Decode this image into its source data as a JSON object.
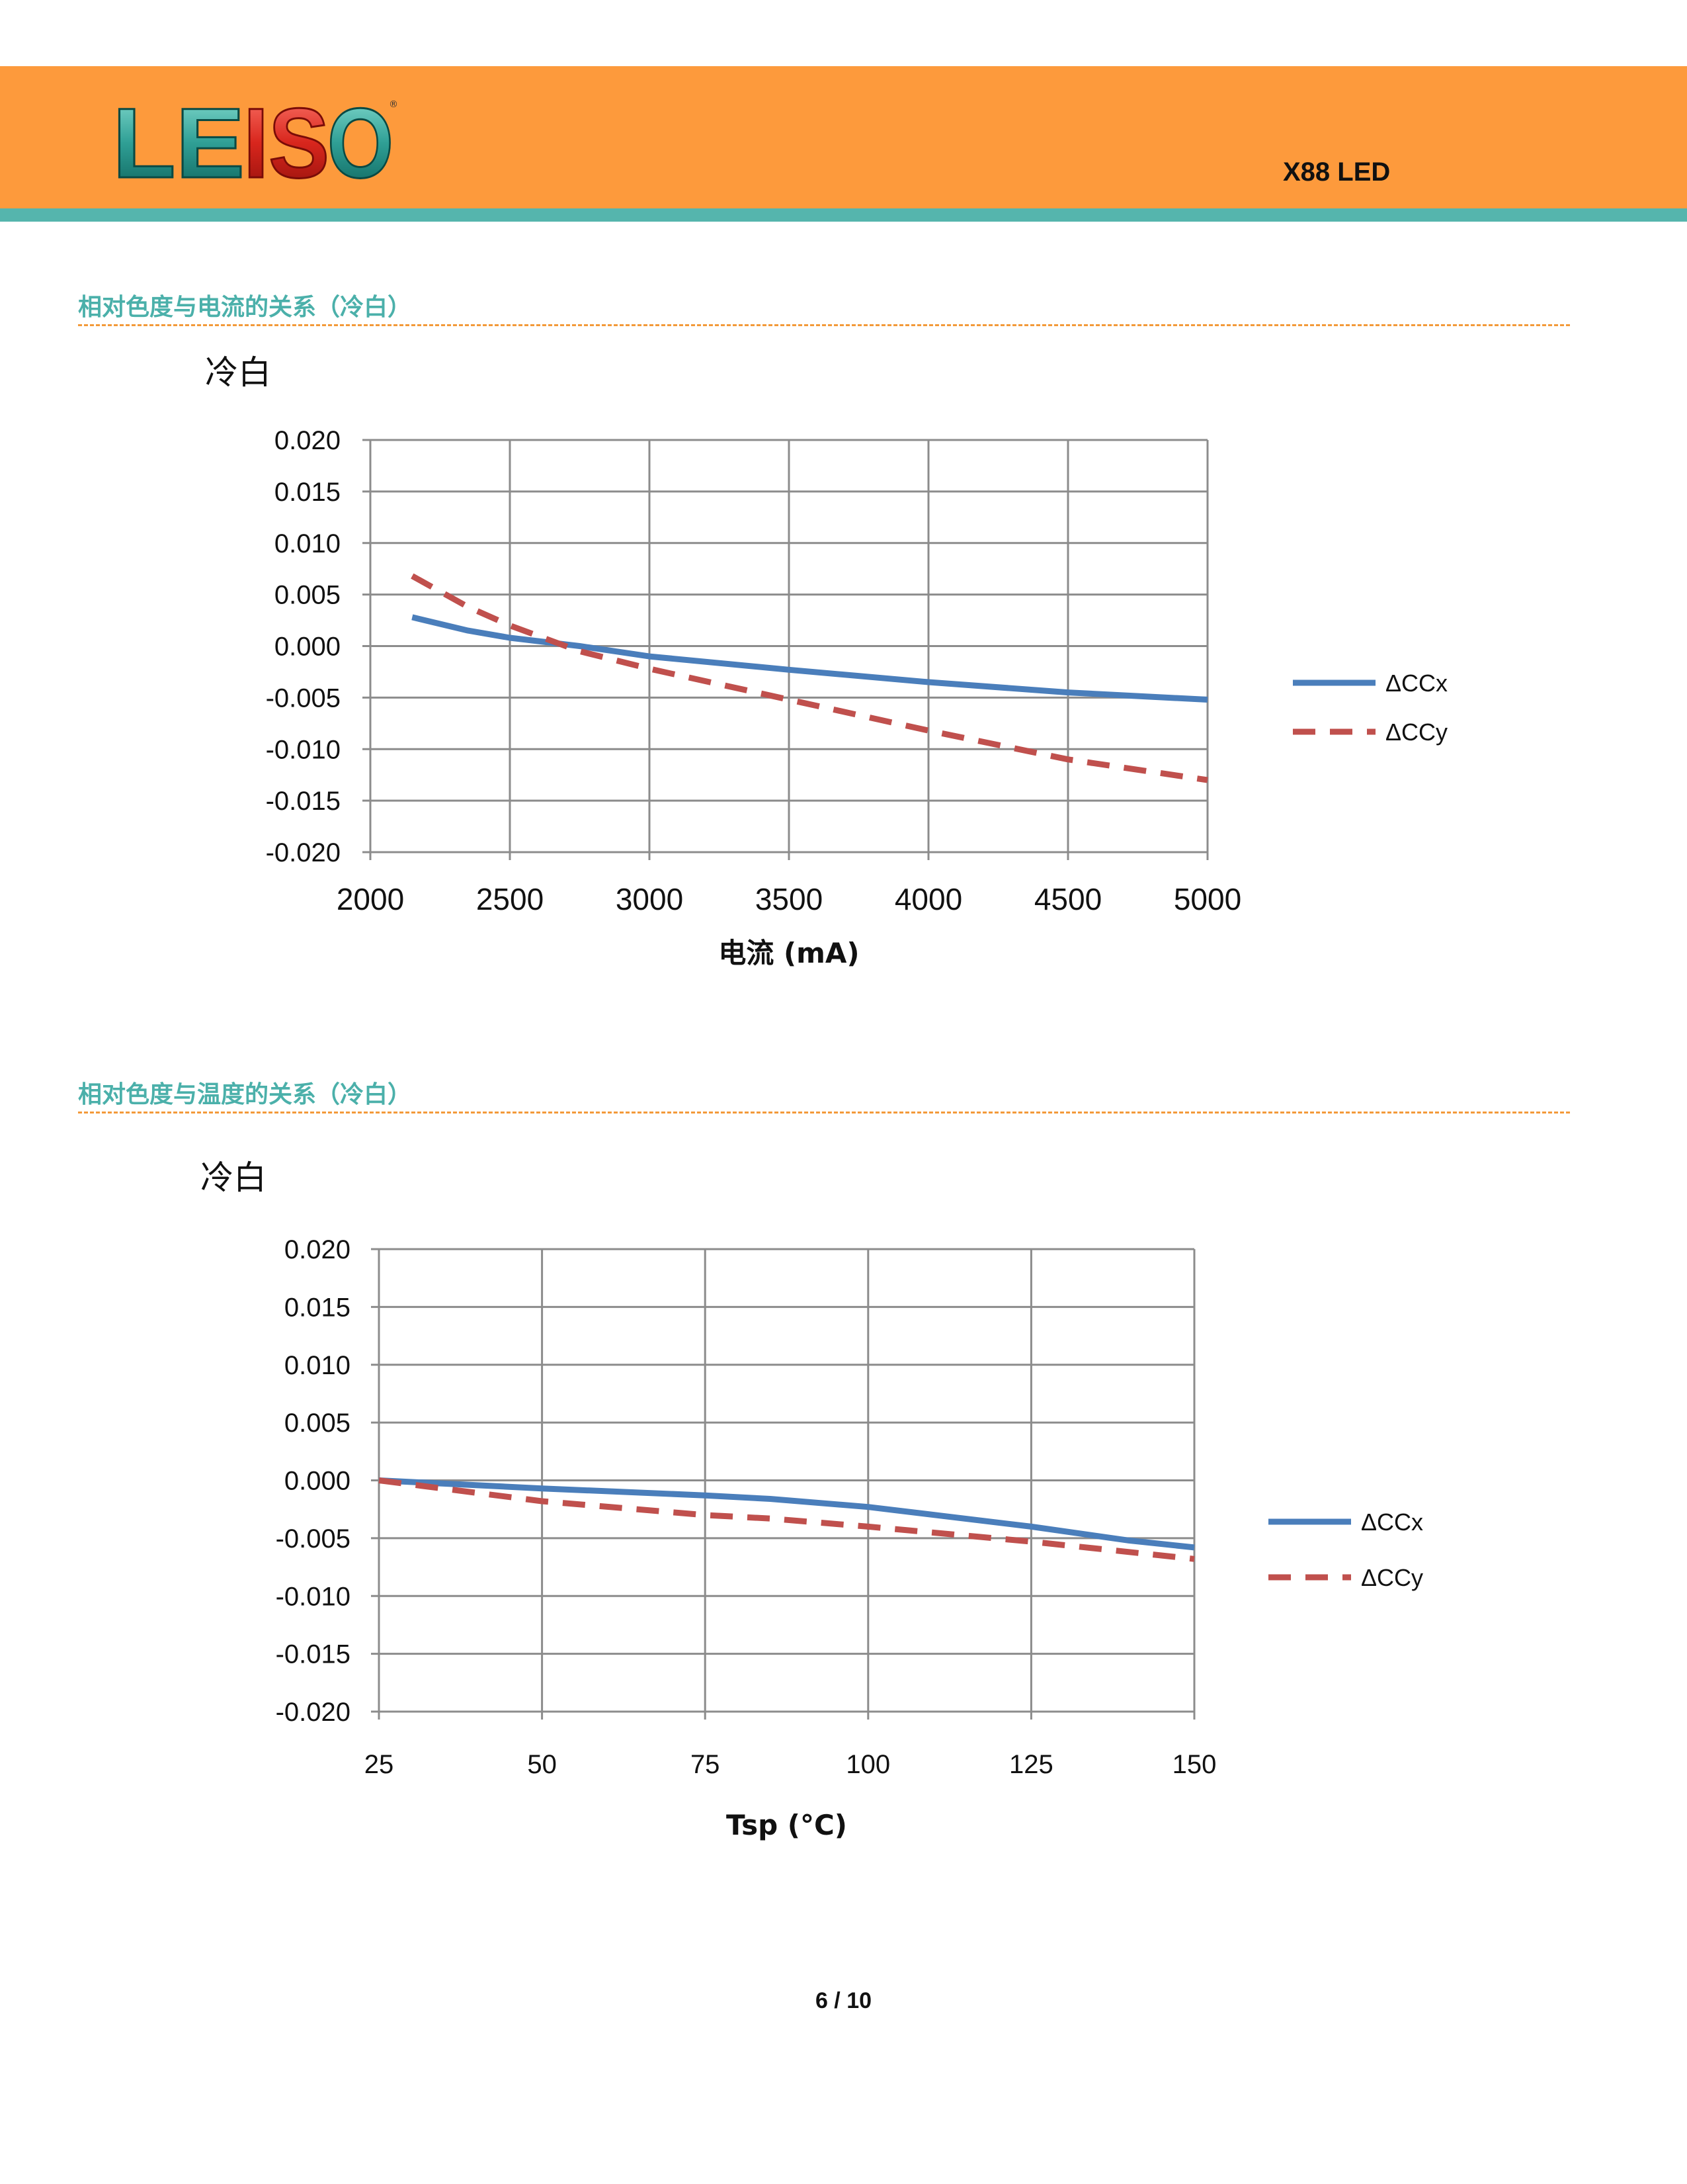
{
  "header": {
    "logo_text": "LEISO",
    "product": "X88 LED"
  },
  "sections": [
    {
      "title": "相对色度与电流的关系（冷白）"
    },
    {
      "title": "相对色度与温度的关系（冷白）"
    }
  ],
  "chart_data": [
    {
      "type": "line",
      "title": "冷白",
      "xlabel": "电流 (mA)",
      "ylabel": "",
      "xlim": [
        2000,
        5000
      ],
      "ylim": [
        -0.02,
        0.02
      ],
      "xticks": [
        "2000",
        "2500",
        "3000",
        "3500",
        "4000",
        "4500",
        "5000"
      ],
      "yticks": [
        "0.020",
        "0.015",
        "0.010",
        "0.005",
        "0.000",
        "-0.005",
        "-0.010",
        "-0.015",
        "-0.020"
      ],
      "grid": true,
      "legend_position": "right",
      "x": [
        2150,
        2350,
        2500,
        2750,
        3000,
        3500,
        4000,
        4500,
        5000
      ],
      "series": [
        {
          "name": "ΔCCx",
          "color": "#4a7ebb",
          "style": "solid",
          "values": [
            0.0028,
            0.0015,
            0.0008,
            0.0,
            -0.001,
            -0.0023,
            -0.0035,
            -0.0045,
            -0.0052
          ]
        },
        {
          "name": "ΔCCy",
          "color": "#c0504d",
          "style": "dashed",
          "values": [
            0.0068,
            0.0038,
            0.002,
            -0.0005,
            -0.0022,
            -0.0052,
            -0.0082,
            -0.011,
            -0.013
          ]
        }
      ]
    },
    {
      "type": "line",
      "title": "冷白",
      "xlabel": "Tsp (°C)",
      "ylabel": "",
      "xlim": [
        25,
        150
      ],
      "ylim": [
        -0.02,
        0.02
      ],
      "xticks": [
        "25",
        "50",
        "75",
        "100",
        "125",
        "150"
      ],
      "yticks": [
        "0.020",
        "0.015",
        "0.010",
        "0.005",
        "0.000",
        "-0.005",
        "-0.010",
        "-0.015",
        "-0.020"
      ],
      "grid": true,
      "legend_position": "right",
      "x": [
        25,
        50,
        75,
        85,
        100,
        125,
        140,
        150
      ],
      "series": [
        {
          "name": "ΔCCx",
          "color": "#4a7ebb",
          "style": "solid",
          "values": [
            0.0,
            -0.0007,
            -0.0013,
            -0.0016,
            -0.0023,
            -0.004,
            -0.0052,
            -0.0058
          ]
        },
        {
          "name": "ΔCCy",
          "color": "#c0504d",
          "style": "dashed",
          "values": [
            0.0,
            -0.0018,
            -0.003,
            -0.0033,
            -0.004,
            -0.0053,
            -0.0062,
            -0.0068
          ]
        }
      ]
    }
  ],
  "footer": {
    "page": "6 / 10"
  }
}
